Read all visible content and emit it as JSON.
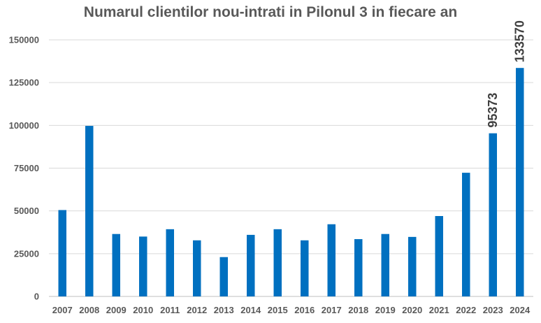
{
  "chart_data": {
    "type": "bar",
    "title": "Numarul clientilor nou-intrati in Pilonul 3 in fiecare an",
    "xlabel": "",
    "ylabel": "",
    "categories": [
      "2007",
      "2008",
      "2009",
      "2010",
      "2011",
      "2012",
      "2013",
      "2014",
      "2015",
      "2016",
      "2017",
      "2018",
      "2019",
      "2020",
      "2021",
      "2022",
      "2023",
      "2024"
    ],
    "series": [
      {
        "values": [
          50500,
          99700,
          36500,
          35000,
          39300,
          32800,
          23000,
          36000,
          39300,
          32800,
          42200,
          33500,
          36500,
          34800,
          47000,
          72300,
          95373,
          133570
        ],
        "data_labels": {
          "16": "95373",
          "17": "133570"
        }
      }
    ],
    "ylim": [
      0,
      150000
    ],
    "yticks": [
      "0",
      "25000",
      "50000",
      "75000",
      "100000",
      "125000",
      "150000"
    ],
    "grid": true,
    "legend": "none",
    "bar_color": "#0070C0",
    "grid_color": "#D9D9D9"
  }
}
